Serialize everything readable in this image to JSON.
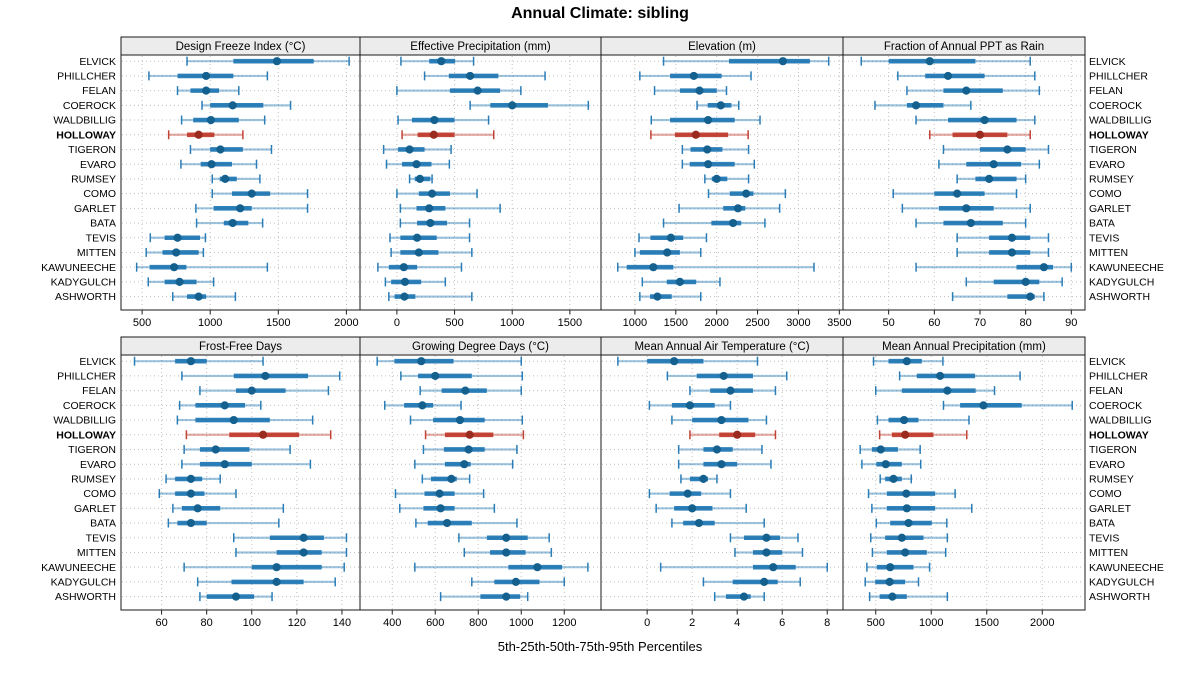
{
  "title": "Annual Climate: sibling",
  "xlabel": "5th-25th-50th-75th-95th Percentiles",
  "sites": [
    "ELVICK",
    "PHILLCHER",
    "FELAN",
    "COEROCK",
    "WALDBILLIG",
    "HOLLOWAY",
    "TIGERON",
    "EVARO",
    "RUMSEY",
    "COMO",
    "GARLET",
    "BATA",
    "TEVIS",
    "MITTEN",
    "KAWUNEECHE",
    "KADYGULCH",
    "ASHWORTH"
  ],
  "highlight_site": "HOLLOWAY",
  "percentile_labels": [
    "5th",
    "25th",
    "50th",
    "75th",
    "95th"
  ],
  "colors": {
    "series": "#1f77b4",
    "series_dot": "#14608f",
    "highlight": "#c0392b",
    "highlight_dot": "#9c2b1f",
    "grid": "#bfbfbf",
    "header_bg": "#ececec",
    "border": "#1a1a1a",
    "text": "#000000"
  },
  "chart_data": [
    {
      "type": "percentile-range",
      "title": "Design Freeze Index (°C)",
      "grid": {
        "row": 0,
        "col": 0
      },
      "xticks": [
        500,
        1000,
        1500,
        2000
      ],
      "xlim": [
        345,
        2100
      ],
      "values": [
        [
          830,
          1170,
          1490,
          1760,
          2020
        ],
        [
          550,
          760,
          970,
          1170,
          1420
        ],
        [
          760,
          855,
          970,
          1065,
          1210
        ],
        [
          940,
          1000,
          1165,
          1390,
          1590
        ],
        [
          790,
          875,
          1005,
          1210,
          1400
        ],
        [
          695,
          830,
          915,
          1030,
          1240
        ],
        [
          855,
          1000,
          1075,
          1240,
          1450
        ],
        [
          785,
          930,
          1010,
          1160,
          1340
        ],
        [
          1015,
          1070,
          1110,
          1195,
          1365
        ],
        [
          1015,
          1160,
          1305,
          1440,
          1715
        ],
        [
          895,
          1025,
          1220,
          1305,
          1715
        ],
        [
          900,
          1100,
          1165,
          1280,
          1385
        ],
        [
          560,
          665,
          760,
          925,
          965
        ],
        [
          530,
          650,
          750,
          915,
          950
        ],
        [
          460,
          555,
          735,
          825,
          1420
        ],
        [
          545,
          665,
          775,
          900,
          1025
        ],
        [
          725,
          830,
          915,
          970,
          1185
        ]
      ]
    },
    {
      "type": "percentile-range",
      "title": "Effective Precipitation (mm)",
      "grid": {
        "row": 0,
        "col": 1
      },
      "xticks": [
        0,
        500,
        1000,
        1500
      ],
      "xlim": [
        -320,
        1770
      ],
      "values": [
        [
          35,
          280,
          385,
          505,
          665
        ],
        [
          240,
          450,
          635,
          880,
          1285
        ],
        [
          0,
          460,
          700,
          895,
          1075
        ],
        [
          635,
          810,
          1000,
          1310,
          1660
        ],
        [
          10,
          130,
          325,
          500,
          795
        ],
        [
          45,
          180,
          320,
          500,
          840
        ],
        [
          -115,
          10,
          110,
          240,
          470
        ],
        [
          -90,
          45,
          170,
          300,
          455
        ],
        [
          110,
          155,
          200,
          290,
          305
        ],
        [
          0,
          190,
          305,
          460,
          695
        ],
        [
          30,
          170,
          280,
          420,
          895
        ],
        [
          30,
          175,
          290,
          435,
          630
        ],
        [
          -60,
          30,
          175,
          345,
          630
        ],
        [
          -50,
          30,
          190,
          360,
          650
        ],
        [
          -165,
          -70,
          60,
          175,
          560
        ],
        [
          -100,
          -50,
          70,
          210,
          420
        ],
        [
          -70,
          -20,
          65,
          160,
          650
        ]
      ]
    },
    {
      "type": "percentile-range",
      "title": "Elevation (m)",
      "grid": {
        "row": 0,
        "col": 2
      },
      "xticks": [
        1000,
        1500,
        2000,
        2500,
        3000,
        3500
      ],
      "xlim": [
        585,
        3545
      ],
      "values": [
        [
          1350,
          2150,
          2810,
          3140,
          3370
        ],
        [
          1060,
          1430,
          1720,
          2060,
          2420
        ],
        [
          1240,
          1550,
          1790,
          2000,
          2120
        ],
        [
          1760,
          1890,
          2050,
          2180,
          2270
        ],
        [
          1200,
          1430,
          1895,
          2220,
          2530
        ],
        [
          1195,
          1490,
          1745,
          2140,
          2385
        ],
        [
          1580,
          1680,
          1885,
          2070,
          2390
        ],
        [
          1580,
          1670,
          1895,
          2220,
          2460
        ],
        [
          1855,
          1940,
          2000,
          2130,
          2390
        ],
        [
          1900,
          2160,
          2360,
          2450,
          2840
        ],
        [
          1540,
          2080,
          2260,
          2350,
          2770
        ],
        [
          1350,
          1935,
          2200,
          2300,
          2590
        ],
        [
          1050,
          1190,
          1440,
          1590,
          1875
        ],
        [
          1000,
          1060,
          1395,
          1550,
          1805
        ],
        [
          790,
          900,
          1225,
          1470,
          3190
        ],
        [
          1090,
          1390,
          1550,
          1750,
          2040
        ],
        [
          1060,
          1185,
          1275,
          1450,
          1805
        ]
      ]
    },
    {
      "type": "percentile-range",
      "title": "Fraction of Annual PPT as Rain",
      "grid": {
        "row": 0,
        "col": 3
      },
      "xticks": [
        50,
        60,
        70,
        80,
        90
      ],
      "xlim": [
        40,
        93
      ],
      "values": [
        [
          44,
          50,
          59,
          69,
          81
        ],
        [
          52,
          58,
          63,
          71,
          82
        ],
        [
          54,
          62,
          67,
          75,
          83
        ],
        [
          47,
          54,
          56,
          62,
          68
        ],
        [
          56,
          63,
          71,
          78,
          82
        ],
        [
          59,
          64,
          70,
          76,
          81
        ],
        [
          62,
          70,
          76,
          80,
          85
        ],
        [
          61,
          67,
          73,
          79,
          83
        ],
        [
          65,
          69,
          72,
          78,
          80
        ],
        [
          51,
          60,
          65,
          71,
          78
        ],
        [
          53,
          61,
          67,
          73,
          81
        ],
        [
          56,
          62,
          68,
          75,
          80
        ],
        [
          65,
          72,
          77,
          81,
          85
        ],
        [
          65,
          72,
          77,
          81,
          85
        ],
        [
          56,
          78,
          84,
          86,
          90
        ],
        [
          67,
          73,
          80,
          83,
          88
        ],
        [
          64,
          76,
          81,
          82,
          84
        ]
      ]
    },
    {
      "type": "percentile-range",
      "title": "Frost-Free Days",
      "grid": {
        "row": 1,
        "col": 0
      },
      "xticks": [
        60,
        80,
        100,
        120,
        140
      ],
      "xlim": [
        42,
        148
      ],
      "values": [
        [
          48,
          66,
          73,
          80,
          105
        ],
        [
          69,
          92,
          106,
          125,
          139
        ],
        [
          77,
          93,
          100,
          115,
          134
        ],
        [
          68,
          75,
          88,
          97,
          104
        ],
        [
          67,
          75,
          92,
          108,
          127
        ],
        [
          71,
          90,
          105,
          121,
          135
        ],
        [
          70,
          77,
          84,
          99,
          117
        ],
        [
          69,
          77,
          88,
          100,
          126
        ],
        [
          62,
          66,
          73,
          78,
          86
        ],
        [
          59,
          66,
          73,
          79,
          93
        ],
        [
          65,
          69,
          76,
          86,
          114
        ],
        [
          63,
          67,
          73,
          80,
          112
        ],
        [
          92,
          108,
          123,
          132,
          142
        ],
        [
          93,
          111,
          123,
          131,
          142
        ],
        [
          70,
          100,
          111,
          131,
          141
        ],
        [
          76,
          91,
          111,
          123,
          137
        ],
        [
          77,
          80,
          93,
          101,
          109
        ]
      ]
    },
    {
      "type": "percentile-range",
      "title": "Growing Degree Days (°C)",
      "grid": {
        "row": 1,
        "col": 1
      },
      "xticks": [
        400,
        600,
        800,
        1000,
        1200
      ],
      "xlim": [
        250,
        1371
      ],
      "values": [
        [
          330,
          410,
          535,
          685,
          1000
        ],
        [
          440,
          520,
          600,
          770,
          1005
        ],
        [
          530,
          630,
          740,
          840,
          1000
        ],
        [
          365,
          455,
          540,
          590,
          720
        ],
        [
          485,
          590,
          715,
          830,
          1005
        ],
        [
          555,
          645,
          760,
          870,
          1010
        ],
        [
          545,
          640,
          755,
          830,
          980
        ],
        [
          505,
          645,
          735,
          765,
          960
        ],
        [
          540,
          580,
          675,
          700,
          760
        ],
        [
          415,
          550,
          620,
          690,
          825
        ],
        [
          435,
          545,
          625,
          690,
          875
        ],
        [
          510,
          565,
          655,
          770,
          980
        ],
        [
          710,
          840,
          930,
          1030,
          1130
        ],
        [
          735,
          855,
          930,
          1020,
          1140
        ],
        [
          505,
          940,
          1075,
          1190,
          1310
        ],
        [
          770,
          875,
          975,
          1085,
          1200
        ],
        [
          625,
          810,
          930,
          995,
          1030
        ]
      ]
    },
    {
      "type": "percentile-range",
      "title": "Mean Annual Air Temperature (°C)",
      "grid": {
        "row": 1,
        "col": 2
      },
      "xticks": [
        0,
        2,
        4,
        6,
        8
      ],
      "xlim": [
        -2.05,
        8.7
      ],
      "values": [
        [
          -1.3,
          0.0,
          1.2,
          2.5,
          4.9
        ],
        [
          0.9,
          2.2,
          3.4,
          4.7,
          6.2
        ],
        [
          1.9,
          2.8,
          3.7,
          4.7,
          5.7
        ],
        [
          0.1,
          1.1,
          1.9,
          3.0,
          3.7
        ],
        [
          1.1,
          2.0,
          3.3,
          4.5,
          5.3
        ],
        [
          1.9,
          3.2,
          4.0,
          4.8,
          5.7
        ],
        [
          1.4,
          2.5,
          3.1,
          3.8,
          5.1
        ],
        [
          1.4,
          2.5,
          3.3,
          4.0,
          5.5
        ],
        [
          1.5,
          1.9,
          2.5,
          2.7,
          3.1
        ],
        [
          0.1,
          1.0,
          1.8,
          2.4,
          3.7
        ],
        [
          0.4,
          1.2,
          2.0,
          2.9,
          4.4
        ],
        [
          1.1,
          1.6,
          2.3,
          3.0,
          5.2
        ],
        [
          3.7,
          4.3,
          5.3,
          5.9,
          6.7
        ],
        [
          3.9,
          4.7,
          5.3,
          6.0,
          6.9
        ],
        [
          0.6,
          4.7,
          5.6,
          6.6,
          8.0
        ],
        [
          2.5,
          3.8,
          5.2,
          5.8,
          6.8
        ],
        [
          3.0,
          3.5,
          4.3,
          4.6,
          5.2
        ]
      ]
    },
    {
      "type": "percentile-range",
      "title": "Mean Annual Precipitation (mm)",
      "grid": {
        "row": 1,
        "col": 3
      },
      "xticks": [
        500,
        1000,
        1500,
        2000
      ],
      "xlim": [
        205,
        2385
      ],
      "values": [
        [
          480,
          615,
          780,
          915,
          1105
        ],
        [
          715,
          870,
          1080,
          1395,
          1800
        ],
        [
          500,
          735,
          1145,
          1400,
          1570
        ],
        [
          1110,
          1260,
          1470,
          1815,
          2270
        ],
        [
          515,
          615,
          755,
          885,
          1340
        ],
        [
          535,
          645,
          765,
          1020,
          1320
        ],
        [
          360,
          465,
          545,
          700,
          900
        ],
        [
          375,
          505,
          590,
          735,
          905
        ],
        [
          540,
          585,
          660,
          735,
          820
        ],
        [
          435,
          600,
          775,
          1035,
          1215
        ],
        [
          465,
          600,
          780,
          1035,
          1365
        ],
        [
          505,
          630,
          795,
          1005,
          1140
        ],
        [
          455,
          585,
          735,
          930,
          1145
        ],
        [
          470,
          600,
          765,
          960,
          1130
        ],
        [
          420,
          510,
          630,
          840,
          985
        ],
        [
          405,
          495,
          625,
          765,
          885
        ],
        [
          445,
          535,
          650,
          780,
          1145
        ]
      ]
    }
  ]
}
